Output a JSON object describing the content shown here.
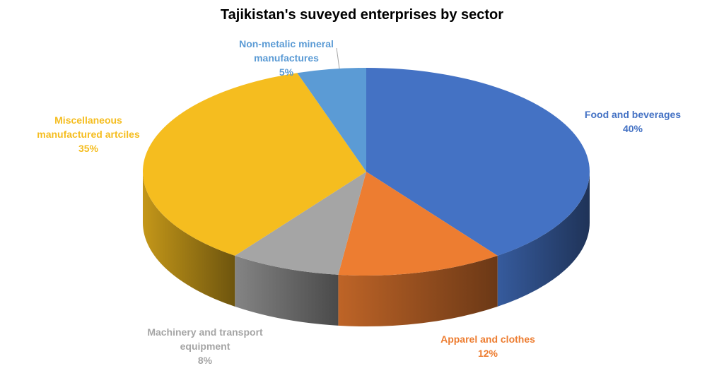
{
  "chart_data": {
    "type": "pie",
    "title": "Tajikistan's suveyed enterprises by sector",
    "categories": [
      "Food and beverages",
      "Apparel and clothes",
      "Machinery and transport equipment",
      "Miscellaneous manufactured artciles",
      "Non-metalic mineral manufactures"
    ],
    "values": [
      40,
      12,
      8,
      35,
      5
    ],
    "value_labels": [
      "40%",
      "12%",
      "8%",
      "35%",
      "5%"
    ],
    "colors": [
      "#4472c4",
      "#ed7d31",
      "#a5a5a5",
      "#f5bd1f",
      "#5b9bd5"
    ]
  }
}
